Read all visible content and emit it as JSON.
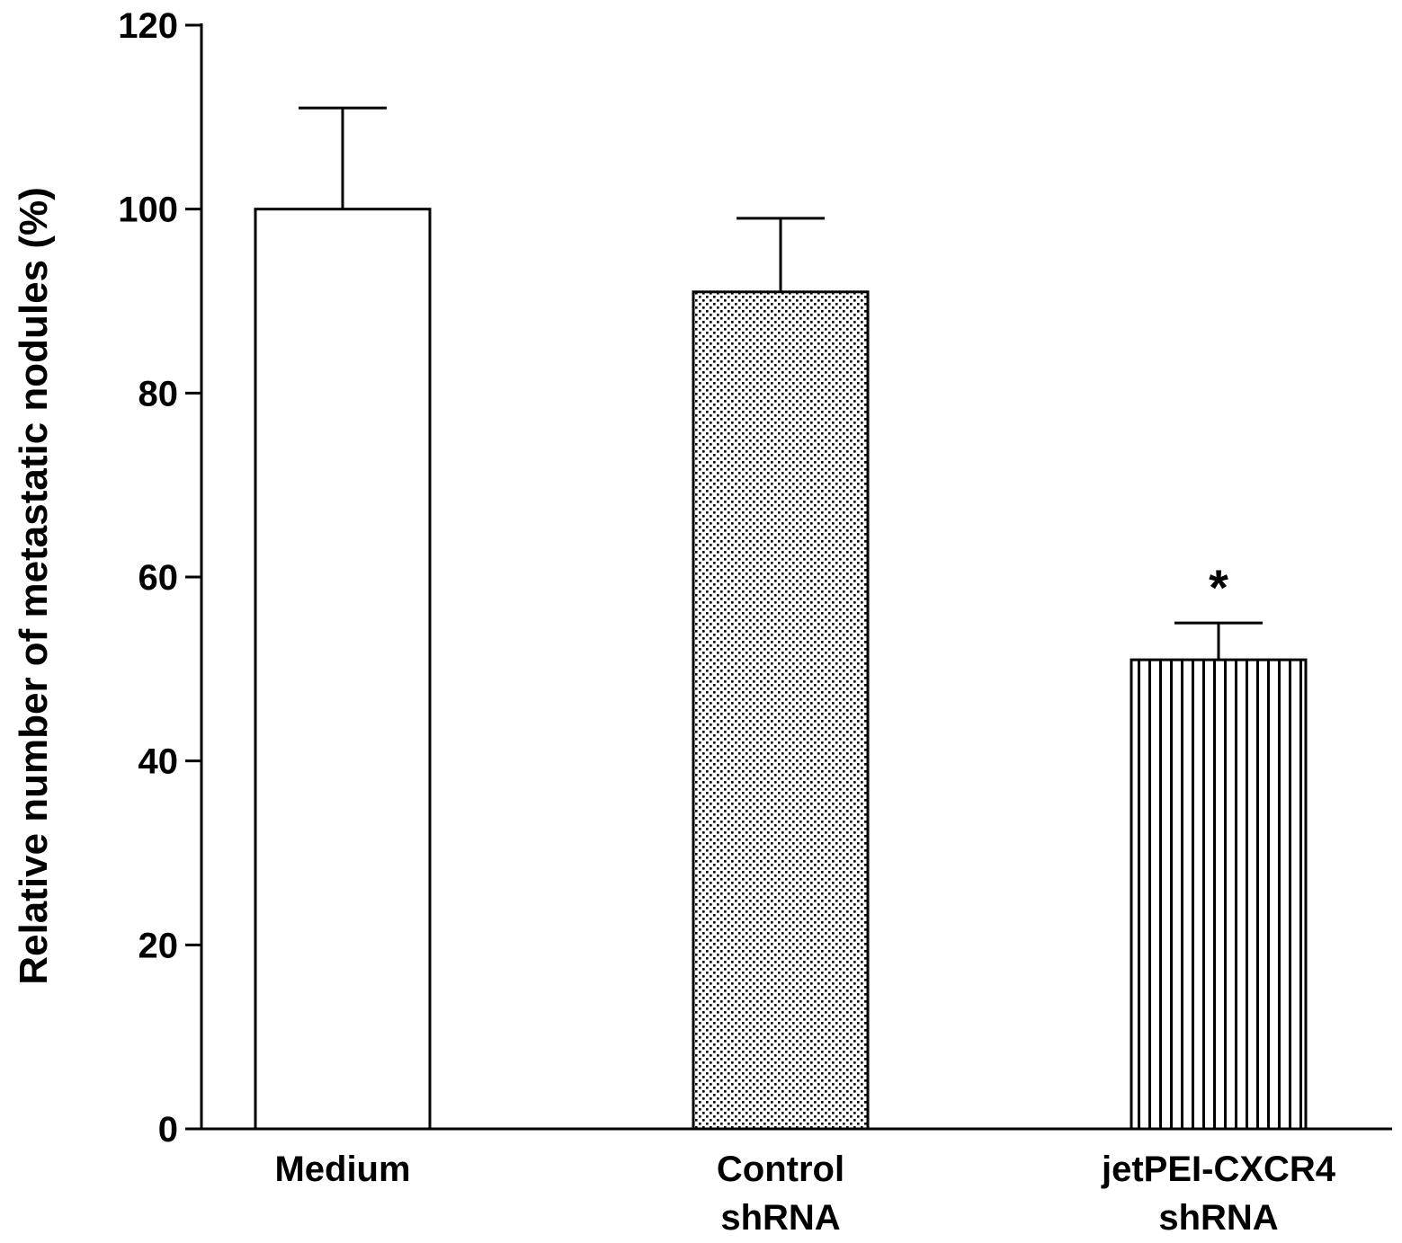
{
  "chart_data": {
    "type": "bar",
    "title": "",
    "xlabel": "",
    "ylabel": "Relative number of metastatic nodules (%)",
    "ylim": [
      0,
      120
    ],
    "yticks": [
      0,
      20,
      40,
      60,
      80,
      100,
      120
    ],
    "grid": false,
    "legend": "none",
    "categories": [
      [
        "Medium"
      ],
      [
        "Control",
        "shRNA"
      ],
      [
        "jetPEI-CXCR4",
        "shRNA"
      ]
    ],
    "values": [
      100,
      91,
      51
    ],
    "error_upper": [
      111,
      99,
      55
    ],
    "fill_patterns": [
      "none",
      "dots",
      "vertical-lines"
    ],
    "annotations": [
      "",
      "",
      "*"
    ],
    "colors": {
      "stroke": "#000000",
      "background": "#ffffff"
    }
  }
}
